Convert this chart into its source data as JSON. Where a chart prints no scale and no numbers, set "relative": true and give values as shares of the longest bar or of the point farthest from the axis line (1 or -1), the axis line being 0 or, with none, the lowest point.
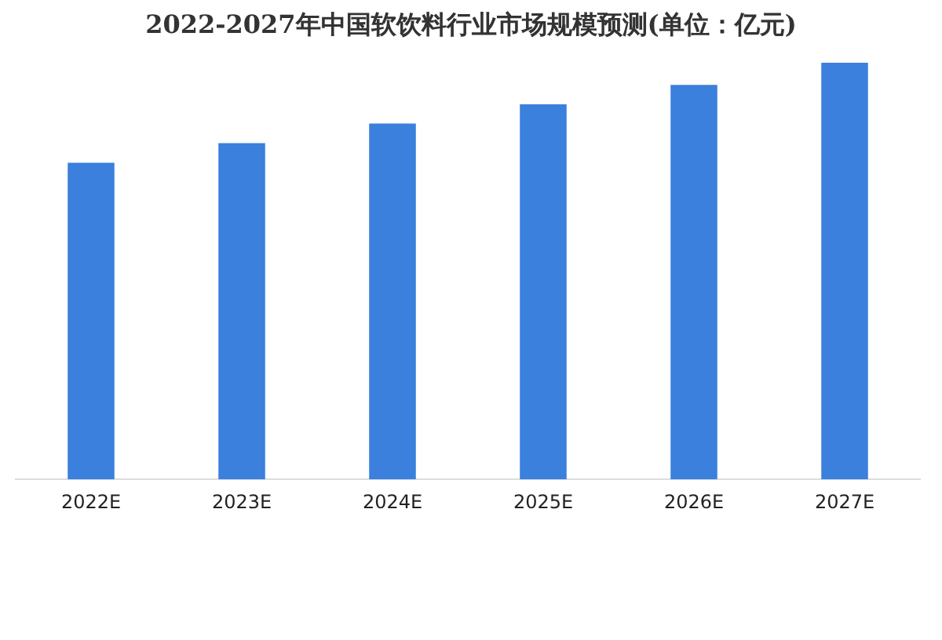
{
  "chart_data": {
    "type": "bar",
    "title": "2022-2027年中国软饮料行业市场规模预测(单位：亿元)",
    "categories": [
      "2022E",
      "2023E",
      "2024E",
      "2025E",
      "2026E",
      "2027E"
    ],
    "values": [
      0.76,
      0.807,
      0.854,
      0.9,
      0.947,
      1
    ],
    "color": "#3a80dc",
    "relative": true,
    "grid": false,
    "legend": false
  }
}
